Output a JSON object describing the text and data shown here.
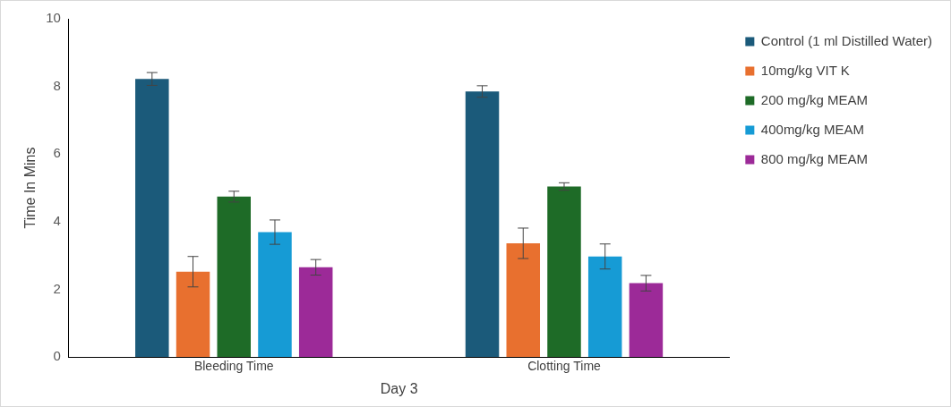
{
  "chart_data": {
    "type": "bar",
    "xlabel": "Day 3",
    "ylabel": "Time In Mins",
    "categories": [
      "Bleeding Time",
      "Clotting Time"
    ],
    "series": [
      {
        "name": "Control (1 ml Distilled Water)",
        "color": "#1b5a7a",
        "values": [
          8.22,
          7.85
        ],
        "errors": [
          0.19,
          0.17
        ]
      },
      {
        "name": "10mg/kg VIT K",
        "color": "#e8702f",
        "values": [
          2.52,
          3.36
        ],
        "errors": [
          0.45,
          0.45
        ]
      },
      {
        "name": "200 mg/kg MEAM",
        "color": "#1e6b27",
        "values": [
          4.74,
          5.04
        ],
        "errors": [
          0.16,
          0.11
        ]
      },
      {
        "name": "400mg/kg MEAM",
        "color": "#169bd5",
        "values": [
          3.69,
          2.97
        ],
        "errors": [
          0.36,
          0.37
        ]
      },
      {
        "name": "800 mg/kg MEAM",
        "color": "#9c2a98",
        "values": [
          2.65,
          2.18
        ],
        "errors": [
          0.23,
          0.23
        ]
      }
    ],
    "ylim": [
      0,
      10
    ],
    "yticks": [
      0,
      2,
      4,
      6,
      8,
      10
    ],
    "grid": false,
    "legend": "right"
  }
}
